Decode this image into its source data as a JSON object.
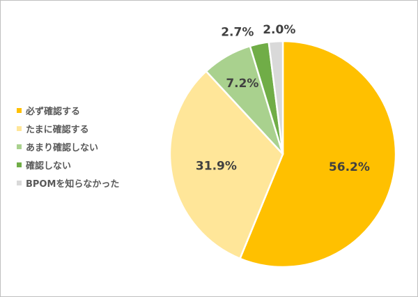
{
  "chart_data": {
    "type": "pie",
    "categories": [
      "必ず確認する",
      "たまに確認する",
      "あまり確認しない",
      "確認しない",
      "BPOMを知らなかった"
    ],
    "values": [
      56.2,
      31.9,
      7.2,
      2.7,
      2.0
    ],
    "labels": [
      "56.2%",
      "31.9%",
      "7.2%",
      "2.7%",
      "2.0%"
    ],
    "colors": [
      "#ffc000",
      "#ffe699",
      "#a9d18e",
      "#70ad47",
      "#d9d9d9"
    ],
    "legend_position": "left",
    "start": "top",
    "direction": "clockwise"
  }
}
